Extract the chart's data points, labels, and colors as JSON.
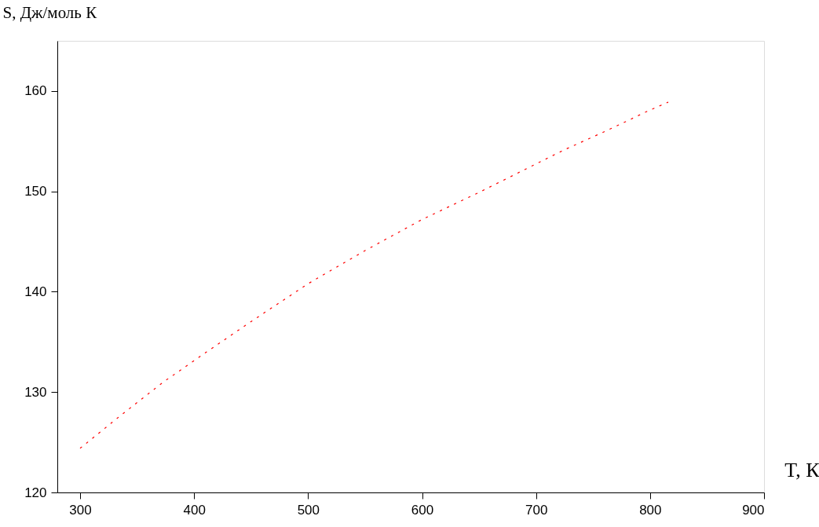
{
  "chart_data": {
    "type": "line",
    "xlabel": "T, К",
    "ylabel": "S, Дж/моль К",
    "x": [
      300,
      337,
      373,
      411,
      447,
      500,
      550,
      600,
      650,
      687,
      724,
      761,
      798,
      816
    ],
    "series": [
      {
        "color": "#ff0000",
        "values": [
          124.4,
          127.8,
          131.0,
          134.0,
          136.8,
          140.8,
          144.1,
          147.2,
          149.9,
          152.0,
          154.1,
          156.0,
          158.0,
          158.9
        ]
      }
    ],
    "line_style": "dashed",
    "grid": false,
    "legend": false,
    "xlim": [
      280,
      900
    ],
    "xticks": [
      300,
      400,
      500,
      600,
      700,
      800,
      900
    ],
    "ylim": [
      120,
      165
    ],
    "yticks": [
      120,
      130,
      140,
      150,
      160
    ]
  }
}
